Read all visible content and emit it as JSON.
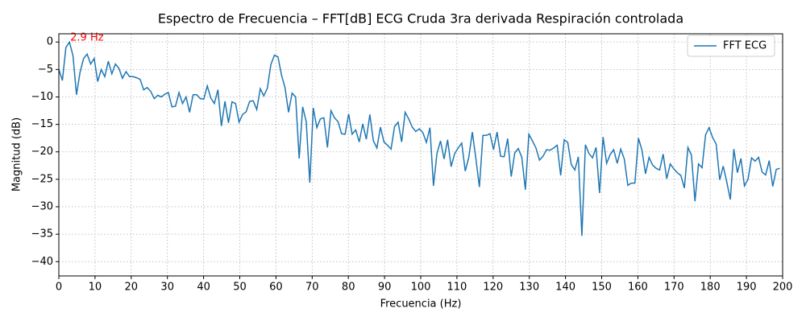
{
  "chart_data": {
    "type": "line",
    "title": "Espectro de Frecuencia – FFT[dB] ECG Cruda 3ra derivada Respiración controlada",
    "xlabel": "Frecuencia (Hz)",
    "ylabel": "Magnitud (dB)",
    "annotation": "2.9 Hz",
    "xlim": [
      0,
      200
    ],
    "ylim": [
      -42.6,
      1.5
    ],
    "xticks": [
      0,
      10,
      20,
      30,
      40,
      50,
      60,
      70,
      80,
      90,
      100,
      110,
      120,
      130,
      140,
      150,
      160,
      170,
      180,
      190,
      200
    ],
    "yticks": [
      {
        "value": 0,
        "label": "0"
      },
      {
        "value": -5,
        "label": "−5"
      },
      {
        "value": -10,
        "label": "−10"
      },
      {
        "value": -15,
        "label": "−15"
      },
      {
        "value": -20,
        "label": "−20"
      },
      {
        "value": -25,
        "label": "−25"
      },
      {
        "value": -30,
        "label": "−30"
      },
      {
        "value": -35,
        "label": "−35"
      },
      {
        "value": -40,
        "label": "−40"
      }
    ],
    "grid": true,
    "legend": "upper right",
    "x": [
      0,
      0.98,
      1.95,
      2.93,
      3.91,
      4.88,
      5.86,
      6.84,
      7.81,
      8.79,
      9.77,
      10.74,
      11.72,
      12.7,
      13.67,
      14.65,
      15.63,
      16.6,
      17.58,
      18.56,
      19.53,
      20.51,
      21.49,
      22.46,
      23.44,
      24.42,
      25.39,
      26.37,
      27.34,
      28.32,
      29.3,
      30.27,
      31.25,
      32.23,
      33.2,
      34.18,
      35.16,
      36.13,
      37.11,
      38.09,
      39.06,
      40.04,
      41.02,
      41.99,
      42.97,
      43.95,
      44.92,
      45.9,
      46.88,
      47.85,
      48.83,
      49.8,
      50.78,
      51.76,
      52.73,
      53.71,
      54.69,
      55.66,
      56.64,
      57.62,
      58.59,
      59.57,
      60.55,
      61.52,
      62.5,
      63.48,
      64.45,
      65.43,
      66.41,
      67.38,
      68.36,
      69.34,
      70.31,
      71.29,
      72.27,
      73.24,
      74.22,
      75.2,
      76.17,
      77.15,
      78.13,
      79.1,
      80.08,
      81.05,
      82.03,
      83.01,
      83.98,
      84.96,
      85.94,
      86.91,
      87.89,
      88.87,
      89.84,
      90.82,
      91.8,
      92.77,
      93.75,
      94.73,
      95.7,
      96.68,
      97.66,
      98.63,
      99.61,
      100.59,
      101.56,
      102.54,
      103.52,
      104.49,
      105.47,
      106.45,
      107.42,
      108.4,
      109.38,
      110.35,
      111.33,
      112.3,
      113.28,
      114.26,
      115.23,
      116.21,
      117.19,
      118.16,
      119.14,
      120.12,
      121.09,
      122.07,
      123.05,
      124.02,
      125,
      125.98,
      126.95,
      127.93,
      128.91,
      129.88,
      130.86,
      131.84,
      132.81,
      133.79,
      134.77,
      135.74,
      136.72,
      137.7,
      138.67,
      139.65,
      140.63,
      141.6,
      142.58,
      143.55,
      144.53,
      145.51,
      146.48,
      147.46,
      148.44,
      149.41,
      150.39,
      151.37,
      152.34,
      153.32,
      154.3,
      155.27,
      156.25,
      157.23,
      158.2,
      159.18,
      160.16,
      161.13,
      162.11,
      163.09,
      164.06,
      165.04,
      166.02,
      166.99,
      167.97,
      168.95,
      169.92,
      170.9,
      171.88,
      172.85,
      173.83,
      174.8,
      175.78,
      176.76,
      177.73,
      178.71,
      179.69,
      180.66,
      181.64,
      182.62,
      183.59,
      184.57,
      185.55,
      186.52,
      187.5,
      188.48,
      189.45,
      190.43,
      191.41,
      192.38,
      193.36,
      194.34,
      195.31,
      196.29,
      197.27,
      198.24,
      199.22
    ],
    "series": [
      {
        "name": "FFT ECG",
        "color": "#1f77b4",
        "values": [
          -5,
          -7,
          -1,
          0,
          -2.5,
          -9.6,
          -5.5,
          -3,
          -2.2,
          -4,
          -3,
          -7.2,
          -5,
          -6.3,
          -3.5,
          -5.8,
          -4,
          -4.8,
          -6.6,
          -5.4,
          -6.3,
          -6.3,
          -6.5,
          -6.8,
          -8.7,
          -8.3,
          -9,
          -10.3,
          -9.7,
          -10,
          -9.5,
          -9.2,
          -11.8,
          -11.7,
          -9.2,
          -11.2,
          -10,
          -12.8,
          -9.6,
          -9.6,
          -10.3,
          -10.4,
          -8,
          -10.2,
          -11.2,
          -8.7,
          -15.3,
          -10.8,
          -14.7,
          -10.9,
          -11.2,
          -14.6,
          -13.2,
          -12.7,
          -10.8,
          -10.7,
          -12.3,
          -8.5,
          -9.8,
          -8.4,
          -4.1,
          -2.4,
          -2.7,
          -6,
          -8.3,
          -12.8,
          -9.3,
          -10,
          -21.2,
          -11.8,
          -14.5,
          -25.6,
          -12,
          -15.6,
          -14,
          -13.8,
          -19.2,
          -12.5,
          -13.8,
          -14.5,
          -16.7,
          -16.8,
          -13.1,
          -16.8,
          -16,
          -18.2,
          -14.9,
          -17.7,
          -13.2,
          -18,
          -19.3,
          -15.5,
          -18.2,
          -18.8,
          -19.5,
          -15.4,
          -14.6,
          -18.2,
          -12.8,
          -14,
          -15.5,
          -16.3,
          -15.8,
          -16.5,
          -18.3,
          -15.6,
          -26.2,
          -20.3,
          -18,
          -21.3,
          -17.8,
          -22.7,
          -20.3,
          -19.3,
          -18.4,
          -23.5,
          -21,
          -16.4,
          -21.2,
          -26.4,
          -17,
          -17,
          -16.7,
          -19.6,
          -16.4,
          -20.8,
          -20.9,
          -17.6,
          -24.5,
          -20.2,
          -19.4,
          -21,
          -26.9,
          -16.8,
          -18,
          -19.3,
          -21.5,
          -20.8,
          -19.6,
          -19.7,
          -19.3,
          -18.8,
          -24.3,
          -17.8,
          -18.3,
          -22.3,
          -23.3,
          -20.9,
          -35.3,
          -18.7,
          -20.3,
          -21.1,
          -19.2,
          -27.5,
          -17.3,
          -22.1,
          -20.5,
          -19.6,
          -22.1,
          -19.5,
          -21.3,
          -26.1,
          -25.7,
          -25.7,
          -17.5,
          -19.7,
          -24,
          -21,
          -22.4,
          -23,
          -23.3,
          -20.4,
          -24.9,
          -22.2,
          -23.1,
          -23.8,
          -24.3,
          -26.6,
          -19.2,
          -20.6,
          -29,
          -22.2,
          -22.9,
          -16.9,
          -15.6,
          -17.4,
          -18.6,
          -25.1,
          -22.6,
          -25.5,
          -28.7,
          -19.5,
          -23.8,
          -21.2,
          -26.2,
          -25,
          -21.1,
          -21.7,
          -21,
          -23.7,
          -24.2,
          -21.6,
          -26.3,
          -23.2,
          -23
        ]
      }
    ]
  }
}
